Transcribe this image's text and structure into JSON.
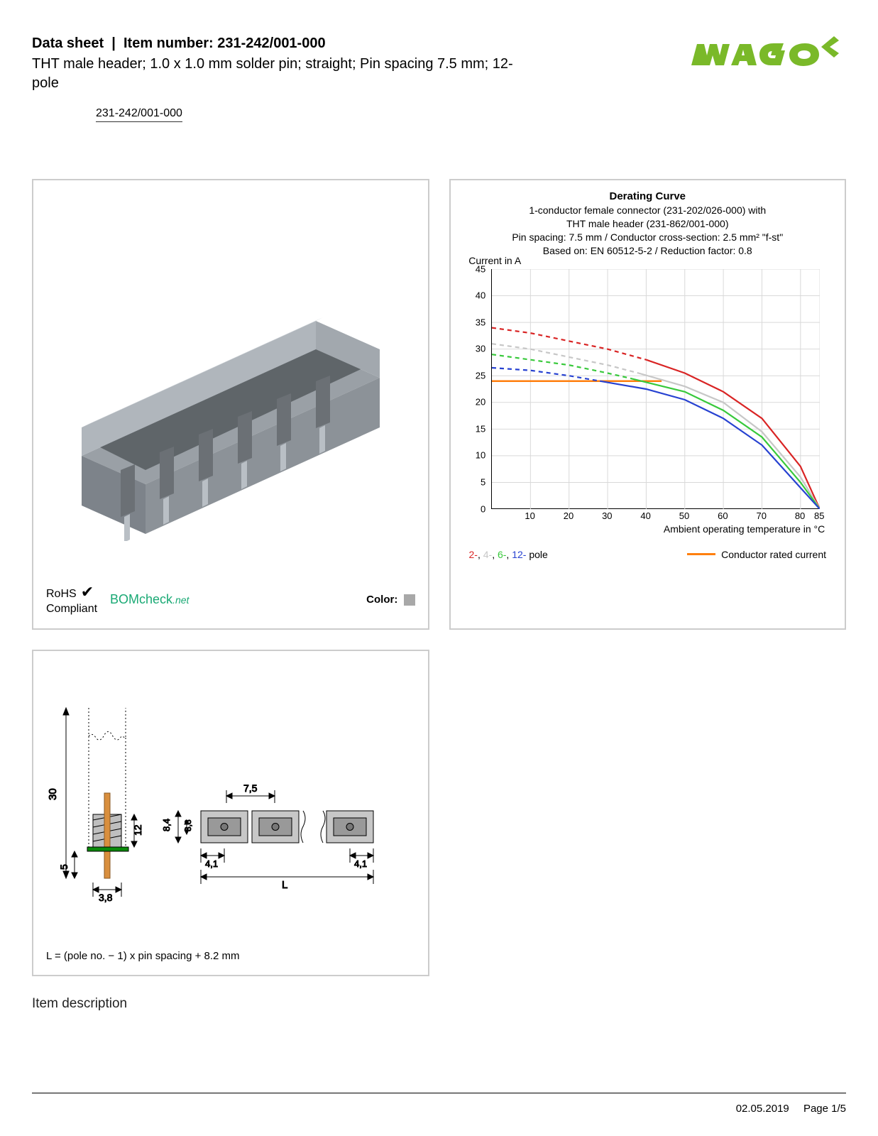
{
  "header": {
    "datasheet_label": "Data sheet",
    "item_number_label": "Item number:",
    "item_number": "231-242/001-000",
    "subtitle": "THT male header; 1.0 x 1.0 mm solder pin; straight; Pin spacing 7.5 mm; 12-pole",
    "item_link": "231-242/001-000"
  },
  "logo": {
    "text": "WAGO",
    "fill": "#7ab929",
    "shadow": "#5a8a1f"
  },
  "compliance": {
    "rohs_line1": "RoHS",
    "rohs_line2": "Compliant",
    "bomcheck": "BOMcheck",
    "bomcheck_net": ".net",
    "color_label": "Color:",
    "color_swatch": "#a8a8a8"
  },
  "chart": {
    "title": "Derating Curve",
    "sub1": "1-conductor female connector (231-202/026-000) with",
    "sub2": "THT male header (231-862/001-000)",
    "sub3": "Pin spacing: 7.5 mm / Conductor cross-section: 2.5 mm² \"f-st\"",
    "sub4": "Based on: EN 60512-5-2 / Reduction factor: 0.8",
    "y_label": "Current in A",
    "x_label": "Ambient operating temperature in °C",
    "y_ticks": [
      0,
      5,
      10,
      15,
      20,
      25,
      30,
      35,
      40,
      45
    ],
    "y_min": 0,
    "y_max": 45,
    "x_ticks": [
      10,
      20,
      30,
      40,
      50,
      60,
      70,
      80
    ],
    "x_extra_tick": 85,
    "x_min": 0,
    "x_max": 85,
    "grid_color": "#d9d9d9",
    "series": [
      {
        "name": "2-pole-dashed",
        "color": "#d92424",
        "dash": true,
        "points": [
          [
            0,
            34
          ],
          [
            10,
            33
          ],
          [
            20,
            31.5
          ],
          [
            30,
            30
          ],
          [
            40,
            28
          ]
        ]
      },
      {
        "name": "2-pole-solid",
        "color": "#d92424",
        "dash": false,
        "points": [
          [
            40,
            28
          ],
          [
            50,
            25.5
          ],
          [
            60,
            22
          ],
          [
            70,
            17
          ],
          [
            80,
            8
          ],
          [
            85,
            0
          ]
        ]
      },
      {
        "name": "4-pole-dashed",
        "color": "#c7c7c7",
        "dash": true,
        "points": [
          [
            0,
            31
          ],
          [
            10,
            30
          ],
          [
            20,
            28.5
          ],
          [
            30,
            27
          ],
          [
            38,
            25.5
          ]
        ]
      },
      {
        "name": "4-pole-solid",
        "color": "#c7c7c7",
        "dash": false,
        "points": [
          [
            38,
            25.5
          ],
          [
            50,
            23
          ],
          [
            60,
            20
          ],
          [
            70,
            14.5
          ],
          [
            80,
            6
          ],
          [
            85,
            0
          ]
        ]
      },
      {
        "name": "6-pole-dashed",
        "color": "#38c93b",
        "dash": true,
        "points": [
          [
            0,
            29
          ],
          [
            10,
            28
          ],
          [
            20,
            27
          ],
          [
            30,
            25.5
          ],
          [
            36,
            24.5
          ]
        ]
      },
      {
        "name": "6-pole-solid",
        "color": "#38c93b",
        "dash": false,
        "points": [
          [
            36,
            24.5
          ],
          [
            50,
            22
          ],
          [
            60,
            18.5
          ],
          [
            70,
            13.5
          ],
          [
            80,
            5
          ],
          [
            85,
            0
          ]
        ]
      },
      {
        "name": "12-pole-dashed",
        "color": "#2742d1",
        "dash": true,
        "points": [
          [
            0,
            26.5
          ],
          [
            10,
            26
          ],
          [
            20,
            25
          ],
          [
            28,
            24
          ]
        ]
      },
      {
        "name": "12-pole-solid",
        "color": "#2742d1",
        "dash": false,
        "points": [
          [
            28,
            24
          ],
          [
            40,
            22.5
          ],
          [
            50,
            20.5
          ],
          [
            60,
            17
          ],
          [
            70,
            12
          ],
          [
            80,
            4
          ],
          [
            85,
            0
          ]
        ]
      }
    ],
    "rated_current": {
      "color": "#ff7f0e",
      "value": 24,
      "x_end": 44
    },
    "legend_poles": [
      {
        "label": "2-",
        "color": "#d92424"
      },
      {
        "label": "4-",
        "color": "#c7c7c7"
      },
      {
        "label": "6-",
        "color": "#38c93b"
      },
      {
        "label": "12-",
        "color": "#2742d1"
      }
    ],
    "legend_poles_suffix": "pole",
    "legend_rated": "Conductor rated current"
  },
  "dimensions": {
    "h_total": "30",
    "pin_below": "5",
    "body_h": "12",
    "pin_w": "3,8",
    "block_w": "8,4",
    "block_h": "3,8",
    "pitch": "7,5",
    "end_l": "4,1",
    "end_r": "4,1",
    "length_var": "L",
    "formula": "L = (pole no. − 1) x pin spacing + 8.2 mm"
  },
  "sections": {
    "item_description": "Item description"
  },
  "footer": {
    "date": "02.05.2019",
    "page": "Page 1/5"
  }
}
